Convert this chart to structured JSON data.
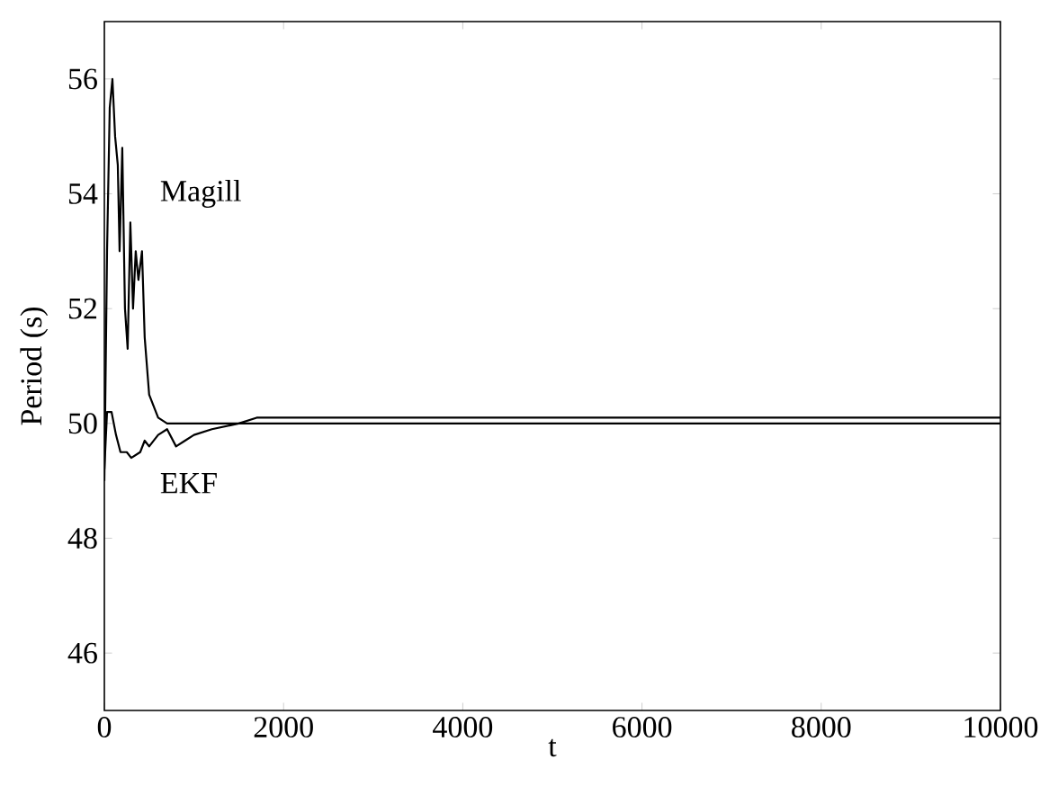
{
  "chart_data": {
    "type": "line",
    "xlabel": "t",
    "ylabel": "Period (s)",
    "xlim": [
      0,
      10000
    ],
    "xticks": [
      0,
      2000,
      4000,
      6000,
      8000,
      10000
    ],
    "ylim": [
      45,
      57
    ],
    "yticks": [
      46,
      48,
      50,
      52,
      54,
      56
    ],
    "grid": false,
    "legend": false,
    "series": [
      {
        "name": "Magill",
        "color": "#000000",
        "x": [
          0,
          30,
          60,
          90,
          120,
          150,
          170,
          200,
          230,
          260,
          290,
          320,
          350,
          380,
          420,
          450,
          500,
          550,
          600,
          700,
          1000,
          10000
        ],
        "values": [
          49,
          53,
          55.5,
          56,
          55,
          54.5,
          53,
          54.8,
          52,
          51.3,
          53.5,
          52,
          53,
          52.5,
          53,
          51.5,
          50.5,
          50.3,
          50.1,
          50,
          50,
          50
        ]
      },
      {
        "name": "EKF",
        "color": "#000000",
        "x": [
          0,
          30,
          80,
          130,
          180,
          250,
          300,
          400,
          450,
          500,
          600,
          700,
          800,
          900,
          1000,
          1200,
          1500,
          1700,
          2000,
          10000
        ],
        "values": [
          49.2,
          50.2,
          50.2,
          49.8,
          49.5,
          49.5,
          49.4,
          49.5,
          49.7,
          49.6,
          49.8,
          49.9,
          49.6,
          49.7,
          49.8,
          49.9,
          50,
          50.1,
          50.1,
          50.1
        ]
      }
    ]
  }
}
